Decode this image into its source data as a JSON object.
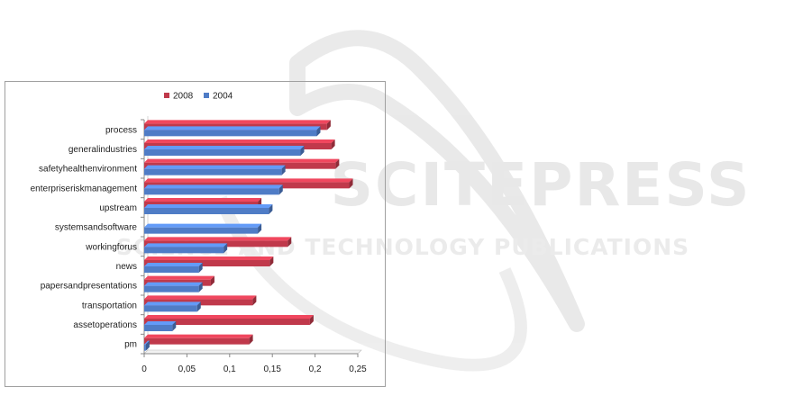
{
  "watermark": {
    "line1": "SCITEPRESS",
    "line2": "SCIENCE AND TECHNOLOGY PUBLICATIONS"
  },
  "chart_data": {
    "type": "bar",
    "orientation": "horizontal",
    "categories": [
      "process",
      "generalindustries",
      "safetyhealthenvironment",
      "enterpriseriskmanagement",
      "upstream",
      "systemsandsoftware",
      "workingforus",
      "news",
      "papersandpresentations",
      "transportation",
      "assetoperations",
      "pm"
    ],
    "series": [
      {
        "name": "2008",
        "color": "#c0394b",
        "values": [
          0.214,
          0.219,
          0.224,
          0.24,
          0.133,
          0,
          0.168,
          0.147,
          0.078,
          0.127,
          0.194,
          0.123
        ]
      },
      {
        "name": "2004",
        "color": "#4f7cc6",
        "values": [
          0.202,
          0.183,
          0.161,
          0.158,
          0.146,
          0.133,
          0.093,
          0.064,
          0.064,
          0.062,
          0.033,
          0.002
        ]
      }
    ],
    "xticks": [
      "0",
      "0,05",
      "0,1",
      "0,15",
      "0,2",
      "0,25"
    ],
    "xlim": [
      0,
      0.25
    ],
    "legend": "top-center",
    "grid": false
  }
}
